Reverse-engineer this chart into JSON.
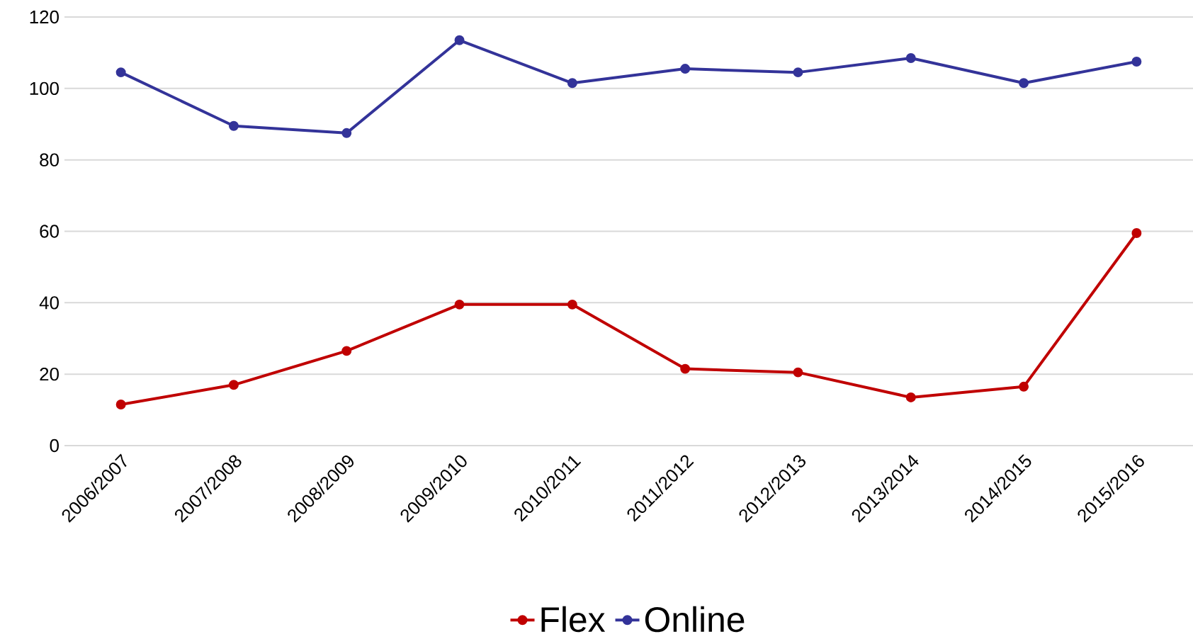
{
  "chart_data": {
    "type": "line",
    "categories": [
      "2006/2007",
      "2007/2008",
      "2008/2009",
      "2009/2010",
      "2010/2011",
      "2011/2012",
      "2012/2013",
      "2013/2014",
      "2014/2015",
      "2015/2016"
    ],
    "series": [
      {
        "name": "Flex",
        "color": "#c00000",
        "values": [
          11.5,
          17,
          26.5,
          39.5,
          39.5,
          21.5,
          20.5,
          13.5,
          16.5,
          59.5
        ]
      },
      {
        "name": "Online",
        "color": "#333399",
        "values": [
          104.5,
          89.5,
          87.5,
          113.5,
          101.5,
          105.5,
          104.5,
          108.5,
          101.5,
          107.5
        ]
      }
    ],
    "ylim": [
      0,
      120
    ],
    "yticks": [
      0,
      20,
      40,
      60,
      80,
      100,
      120
    ],
    "grid": "y",
    "legend": "bottom",
    "marker": "circle",
    "line_style": "solid"
  }
}
